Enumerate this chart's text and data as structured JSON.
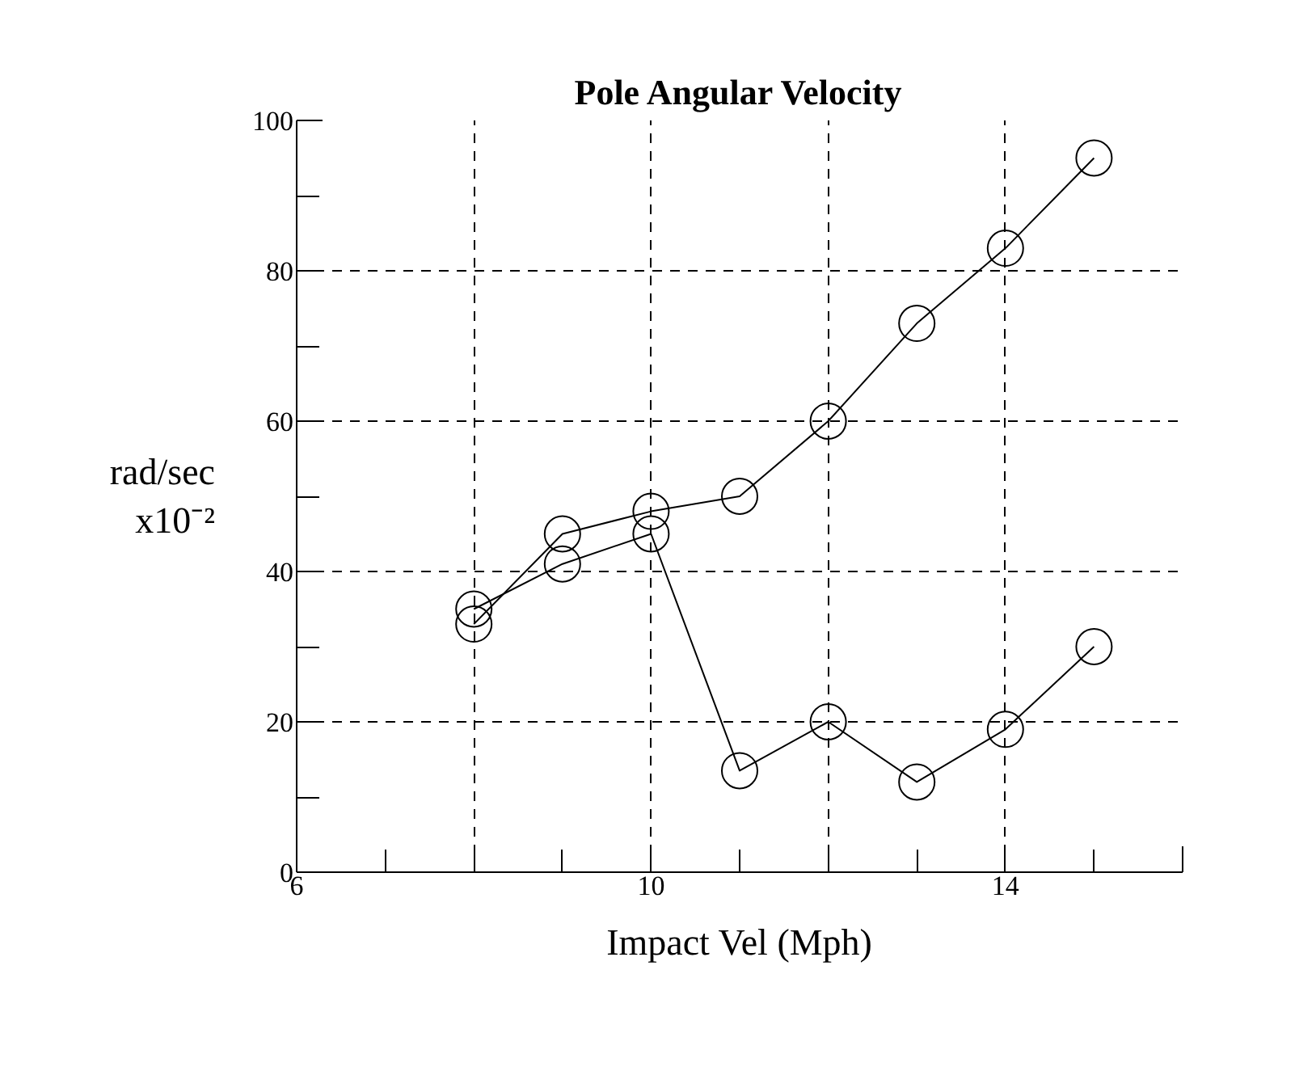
{
  "chart_data": {
    "type": "line",
    "title": "Pole Angular Velocity",
    "xlabel": "Impact Vel (Mph)",
    "ylabel": "rad/sec\nx10⁻²",
    "x": [
      8,
      9,
      10,
      11,
      12,
      13,
      14,
      15
    ],
    "series": [
      {
        "color": "#000000",
        "values": [
          33,
          45,
          48,
          50,
          60,
          73,
          83,
          95
        ]
      },
      {
        "color": "#000000",
        "values": [
          35,
          41,
          45,
          13.5,
          20,
          12,
          19,
          30
        ]
      }
    ],
    "xlim": [
      6,
      16
    ],
    "xticks": [
      6,
      {
        "value": 8,
        "label": null
      },
      10,
      {
        "value": 12,
        "label": null
      },
      14,
      {
        "value": 16,
        "label": null
      }
    ],
    "ylim": [
      0,
      100
    ],
    "yticks": [
      0,
      20,
      40,
      60,
      80,
      100
    ],
    "grid": true,
    "marker": "circle",
    "line_style": "solid"
  }
}
